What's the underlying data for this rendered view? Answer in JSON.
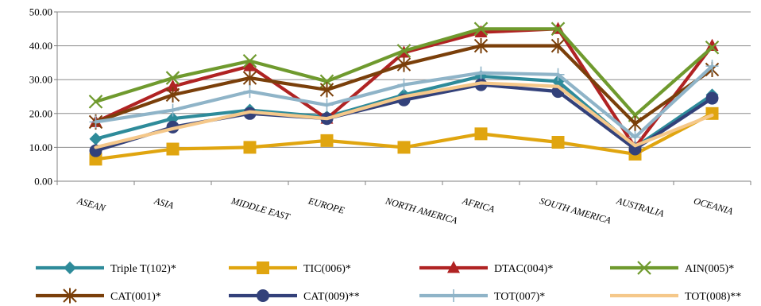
{
  "chart_data": {
    "type": "line",
    "categories": [
      "ASEAN",
      "ASIA",
      "MIDDLE EAST",
      "EUROPE",
      "NORTH AMERICA",
      "AFRICA",
      "SOUTH AMERICA",
      "AUSTRALIA",
      "OCEANIA"
    ],
    "ylim": [
      0,
      50
    ],
    "yticks": [
      "0.00",
      "10.00",
      "20.00",
      "30.00",
      "40.00",
      "50.00"
    ],
    "grid": true,
    "legend": "bottom",
    "series": [
      {
        "name": "Triple T(102)*",
        "color": "#2E8B9A",
        "marker": "diamond",
        "values": [
          12.5,
          18.5,
          21,
          19,
          25.5,
          31,
          29.5,
          10,
          25.5
        ]
      },
      {
        "name": "TIC(006)*",
        "color": "#E0A50F",
        "marker": "square",
        "values": [
          6.5,
          9.5,
          10,
          12,
          10,
          14,
          11.5,
          8,
          20
        ]
      },
      {
        "name": "DTAC(004)*",
        "color": "#B02323",
        "marker": "triangle",
        "values": [
          17.5,
          28,
          34,
          18.5,
          38,
          44,
          45,
          10,
          40
        ]
      },
      {
        "name": "AIN(005)*",
        "color": "#6F9A2E",
        "marker": "x",
        "values": [
          23.5,
          30.5,
          35.5,
          29.5,
          38.5,
          45,
          45,
          19.5,
          39.5
        ]
      },
      {
        "name": "CAT(001)*",
        "color": "#7A3F0A",
        "marker": "star",
        "values": [
          17.5,
          25.5,
          30.5,
          27,
          34.5,
          40,
          40,
          17,
          33
        ]
      },
      {
        "name": "CAT(009)**",
        "color": "#33417A",
        "marker": "circle",
        "values": [
          9,
          16,
          20,
          18.5,
          24,
          28.5,
          26.5,
          9.5,
          24.5
        ]
      },
      {
        "name": "TOT(007)*",
        "color": "#8FB4C8",
        "marker": "plus",
        "values": [
          17.5,
          21,
          26.5,
          22.5,
          28.5,
          32,
          31.5,
          13,
          34
        ]
      },
      {
        "name": "TOT(008)**",
        "color": "#F5C88A",
        "marker": "none",
        "values": [
          10,
          15.5,
          20.5,
          18.5,
          25,
          29,
          28,
          10.5,
          19.5
        ]
      }
    ]
  }
}
